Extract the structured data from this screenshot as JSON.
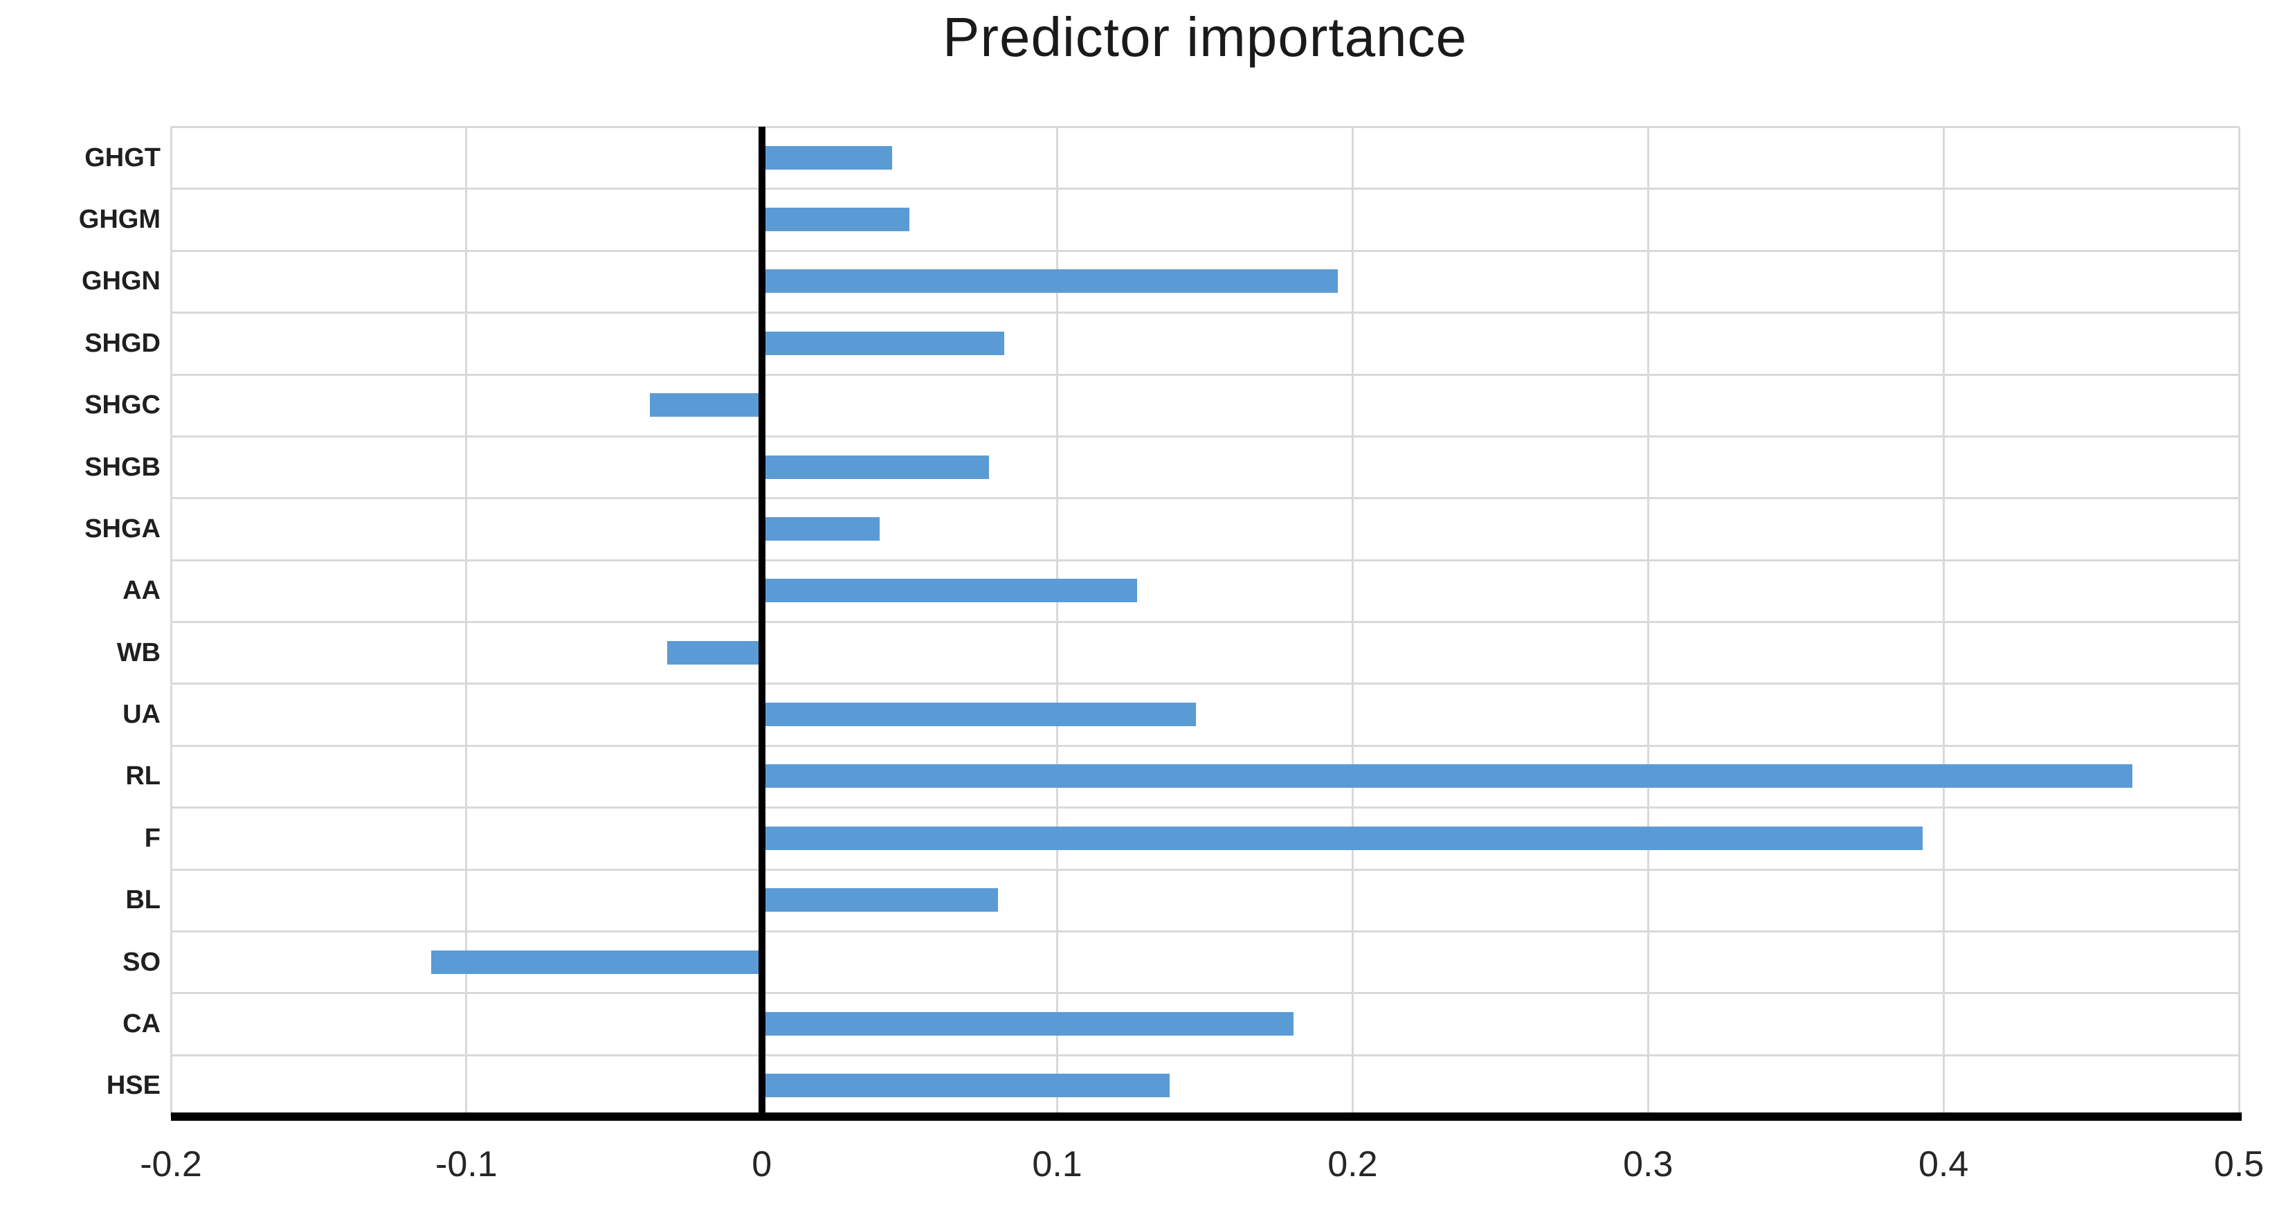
{
  "chart_data": {
    "type": "bar",
    "orientation": "horizontal",
    "title": "Predictor importance",
    "categories": [
      "GHGT",
      "GHGM",
      "GHGN",
      "SHGD",
      "SHGC",
      "SHGB",
      "SHGA",
      "AA",
      "WB",
      "UA",
      "RL",
      "F",
      "BL",
      "SO",
      "CA",
      "HSE"
    ],
    "values": [
      0.044,
      0.05,
      0.195,
      0.082,
      -0.038,
      0.077,
      0.04,
      0.127,
      -0.032,
      0.147,
      0.464,
      0.393,
      0.08,
      -0.112,
      0.18,
      0.138
    ],
    "xlabel": "",
    "ylabel": "",
    "xlim": [
      -0.2,
      0.5
    ],
    "x_ticks": [
      -0.2,
      -0.1,
      0,
      0.1,
      0.2,
      0.3,
      0.4,
      0.5
    ],
    "x_tick_labels": [
      "-0.2",
      "-0.1",
      "0",
      "0.1",
      "0.2",
      "0.3",
      "0.4",
      "0.5"
    ],
    "bar_color": "#5b9bd5",
    "gridline_color": "#d9d9d9",
    "axis_color": "#000000",
    "grid": "both",
    "legend": "none"
  }
}
